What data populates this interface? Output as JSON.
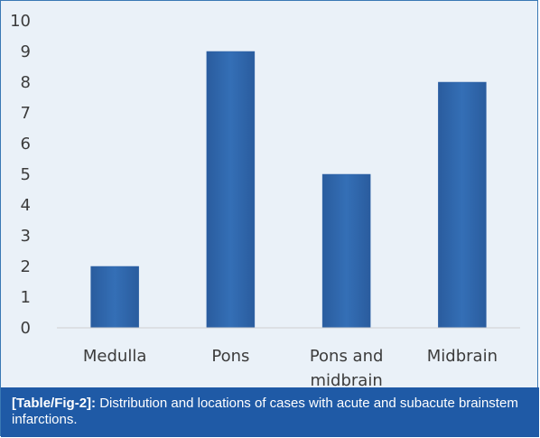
{
  "chart_data": {
    "type": "bar",
    "categories": [
      [
        "Medulla"
      ],
      [
        "Pons"
      ],
      [
        "Pons and",
        "midbrain"
      ],
      [
        "Midbrain"
      ]
    ],
    "values": [
      2,
      9,
      5,
      8
    ],
    "ylim": [
      0,
      10
    ],
    "yticks": [
      "0",
      "1",
      "2",
      "3",
      "4",
      "5",
      "6",
      "7",
      "8",
      "9",
      "10"
    ],
    "grid": false,
    "bar_color": "#2e62a6"
  },
  "caption": {
    "label": "[Table/Fig-2]:",
    "text": " Distribution and locations of cases with acute and subacute brainstem infarctions."
  }
}
